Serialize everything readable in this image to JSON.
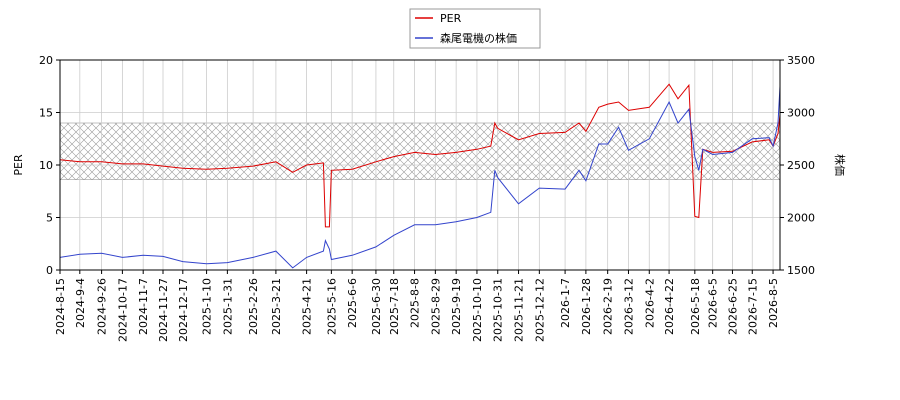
{
  "chart_data": {
    "type": "line",
    "y_label": "PER",
    "y2_label": "株価",
    "x": [
      "2024-8-15",
      "2024-9-4",
      "2024-9-26",
      "2024-10-17",
      "2024-11-7",
      "2024-11-27",
      "2024-12-17",
      "2025-1-10",
      "2025-1-31",
      "2025-2-26",
      "2025-3-21",
      "2025-4-7",
      "2025-4-21",
      "2025-5-8",
      "2025-5-10",
      "2025-5-14",
      "2025-5-16",
      "2025-6-6",
      "2025-6-30",
      "2025-7-18",
      "2025-8-8",
      "2025-8-29",
      "2025-9-19",
      "2025-10-10",
      "2025-10-24",
      "2025-10-28",
      "2025-10-31",
      "2025-11-21",
      "2025-12-12",
      "2026-1-7",
      "2026-1-21",
      "2026-1-28",
      "2026-2-10",
      "2026-2-19",
      "2026-3-2",
      "2026-3-12",
      "2026-4-2",
      "2026-4-22",
      "2026-5-1",
      "2026-5-12",
      "2026-5-18",
      "2026-5-22",
      "2026-5-26",
      "2026-6-5",
      "2026-6-25",
      "2026-7-15",
      "2026-8-1",
      "2026-8-5",
      "2026-8-10",
      "2026-8-12"
    ],
    "series": [
      {
        "name": "PER",
        "color": "#dd0000",
        "values": [
          10.5,
          10.3,
          10.3,
          10.1,
          10.1,
          9.9,
          9.7,
          9.6,
          9.7,
          9.9,
          10.3,
          9.3,
          10.0,
          10.2,
          4.1,
          4.1,
          9.5,
          9.6,
          10.3,
          10.8,
          11.2,
          11.0,
          11.2,
          11.5,
          11.8,
          14.0,
          13.5,
          12.4,
          13.0,
          13.1,
          14.0,
          13.2,
          15.5,
          15.8,
          16.0,
          15.2,
          15.5,
          17.7,
          16.3,
          17.6,
          5.1,
          5.0,
          11.5,
          11.2,
          11.3,
          12.2,
          12.4,
          11.8,
          13.0,
          14.8
        ]
      },
      {
        "name": "森尾電機の株価",
        "color": "#3344cc",
        "axis": "y2",
        "values": [
          1620,
          1650,
          1660,
          1620,
          1640,
          1630,
          1580,
          1560,
          1570,
          1620,
          1680,
          1520,
          1620,
          1680,
          1780,
          1700,
          1600,
          1640,
          1720,
          1830,
          1930,
          1930,
          1960,
          2000,
          2050,
          2450,
          2380,
          2130,
          2280,
          2270,
          2450,
          2350,
          2700,
          2700,
          2860,
          2640,
          2750,
          3100,
          2900,
          3030,
          2580,
          2450,
          2650,
          2600,
          2620,
          2750,
          2760,
          2680,
          2900,
          3250
        ]
      }
    ],
    "band": [
      8.6,
      14
    ],
    "xlim": [
      "2024-8-15",
      "2026-8-12"
    ],
    "xticks": [
      "2024-8-15",
      "2024-9-4",
      "2024-9-26",
      "2024-10-17",
      "2024-11-7",
      "2024-11-27",
      "2024-12-17",
      "2025-1-10",
      "2025-1-31",
      "2025-2-26",
      "2025-3-21",
      "2025-4-21",
      "2025-5-16",
      "2025-6-6",
      "2025-6-30",
      "2025-7-18",
      "2025-8-8",
      "2025-8-29",
      "2025-9-19",
      "2025-10-10",
      "2025-10-31",
      "2025-11-21",
      "2025-12-12",
      "2026-1-7",
      "2026-1-28",
      "2026-2-19",
      "2026-3-12",
      "2026-4-2",
      "2026-4-22",
      "2026-5-18",
      "2026-6-5",
      "2026-6-25",
      "2026-7-15",
      "2026-8-5"
    ],
    "ylim": [
      0,
      20
    ],
    "yticks": [
      0,
      5,
      10,
      15,
      20
    ],
    "y2lim": [
      1500,
      3500
    ],
    "y2ticks": [
      1500,
      2000,
      2500,
      3000,
      3500
    ],
    "grid": true,
    "legend": "top"
  }
}
